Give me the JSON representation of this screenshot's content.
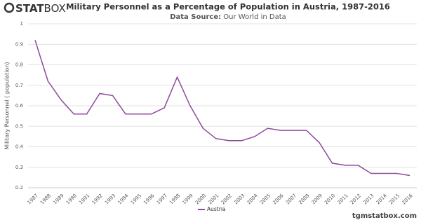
{
  "logo": {
    "bold": "STAT",
    "light": "BOX"
  },
  "chart_data": {
    "type": "line",
    "title": "Military Personnel as a Percentage of Population in Austria, 1987-2016",
    "source_label": "Data Source:",
    "source": "Our World in Data",
    "y_label": "Military Personnel ( population)",
    "categories": [
      "1987",
      "1988",
      "1989",
      "1990",
      "1991",
      "1992",
      "1993",
      "1994",
      "1995",
      "1996",
      "1997",
      "1998",
      "1999",
      "2000",
      "2001",
      "2002",
      "2003",
      "2004",
      "2005",
      "2006",
      "2007",
      "2008",
      "2009",
      "2010",
      "2011",
      "2012",
      "2013",
      "2014",
      "2015",
      "2016"
    ],
    "series": [
      {
        "name": "Austria",
        "color": "#8e4a9e",
        "values": [
          0.92,
          0.72,
          0.63,
          0.56,
          0.56,
          0.66,
          0.65,
          0.56,
          0.56,
          0.56,
          0.59,
          0.74,
          0.6,
          0.49,
          0.44,
          0.43,
          0.43,
          0.45,
          0.49,
          0.48,
          0.48,
          0.48,
          0.42,
          0.32,
          0.31,
          0.31,
          0.27,
          0.27,
          0.27,
          0.26
        ]
      }
    ],
    "ylim": [
      0.2,
      1
    ],
    "yticks": [
      0.2,
      0.3,
      0.4,
      0.5,
      0.6,
      0.7,
      0.8,
      0.9,
      1
    ],
    "grid": true
  },
  "footer": "tgmstatbox.com"
}
